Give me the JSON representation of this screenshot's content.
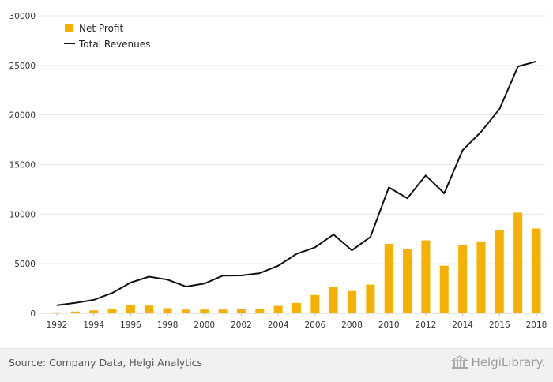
{
  "chart_data": {
    "type": "bar",
    "title": "",
    "xlabel": "",
    "ylabel": "",
    "categories": [
      "1992",
      "1993",
      "1994",
      "1995",
      "1996",
      "1997",
      "1998",
      "1999",
      "2000",
      "2001",
      "2002",
      "2003",
      "2004",
      "2005",
      "2006",
      "2007",
      "2008",
      "2009",
      "2010",
      "2011",
      "2012",
      "2013",
      "2014",
      "2015",
      "2016",
      "2017",
      "2018"
    ],
    "x_tick_labels": [
      "1992",
      "1994",
      "1996",
      "1998",
      "2000",
      "2002",
      "2004",
      "2006",
      "2008",
      "2010",
      "2012",
      "2014",
      "2016",
      "2018"
    ],
    "y_ticks": [
      0,
      5000,
      10000,
      15000,
      20000,
      25000,
      30000
    ],
    "ylim": [
      0,
      30000
    ],
    "grid": "horizontal",
    "legend_position": "top-left",
    "series": [
      {
        "name": "Net Profit",
        "type": "bar",
        "color": "#f5b000",
        "values": [
          100,
          180,
          300,
          450,
          800,
          780,
          520,
          380,
          380,
          380,
          450,
          450,
          750,
          1050,
          1850,
          2650,
          2250,
          2900,
          7000,
          6450,
          7350,
          4800,
          6850,
          7250,
          8400,
          10150,
          8550
        ]
      },
      {
        "name": "Total Revenues",
        "type": "line",
        "color": "#111111",
        "values": [
          800,
          1050,
          1350,
          2050,
          3100,
          3700,
          3400,
          2700,
          3000,
          3800,
          3820,
          4050,
          4800,
          6000,
          6650,
          7950,
          6350,
          7700,
          12700,
          11600,
          13900,
          12100,
          16450,
          18300,
          20600,
          24900,
          25400
        ]
      }
    ]
  },
  "footer": {
    "source": "Source: Company Data, Helgi Analytics",
    "brand": "HelgiLibrary."
  }
}
